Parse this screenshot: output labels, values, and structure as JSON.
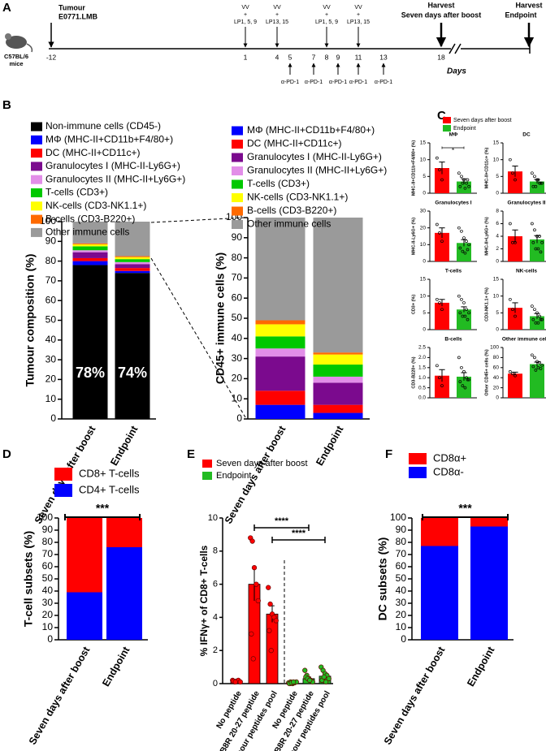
{
  "panel_labels": [
    "A",
    "B",
    "C",
    "D",
    "E",
    "F"
  ],
  "timeline": {
    "mouse": [
      "C57BL/6",
      "mice"
    ],
    "tumour": [
      "Tumour",
      "E0771.LMB"
    ],
    "days": [
      -12,
      1,
      4,
      5,
      7,
      8,
      9,
      11,
      13,
      18
    ],
    "axis_label": "Days",
    "injections": [
      {
        "agent": "VV",
        "plus": "+",
        "peptides": "LP1, 5, 9"
      },
      {
        "agent": "VV",
        "plus": "+",
        "peptides": "LP13, 15"
      },
      {
        "agent": "VV",
        "plus": "+",
        "peptides": "LP1, 5, 9"
      },
      {
        "agent": "VV",
        "plus": "+",
        "peptides": "LP13, 15"
      }
    ],
    "pd1": [
      "α-PD-1",
      "α-PD-1",
      "α-PD-1",
      "α-PD-1",
      "α-PD-1"
    ],
    "harvests": [
      {
        "title": "Harvest",
        "when": "Seven days after boost"
      },
      {
        "title": "Harvest",
        "when": "Endpoint"
      }
    ]
  },
  "panel_c_legend": {
    "names": [
      "Seven days after boost",
      "Endpoint"
    ]
  },
  "chart_data": [
    {
      "type": "stacked_bar",
      "ylabel": "Tumour composition (%)",
      "categories": [
        "Seven days after boost",
        "Endpoint"
      ],
      "ylim": [
        0,
        100
      ],
      "yticks": [
        0,
        10,
        20,
        30,
        40,
        50,
        60,
        70,
        80,
        90,
        100
      ],
      "series": [
        {
          "name": "Non-immune cells (CD45-)",
          "color": "#000000",
          "values": [
            78,
            74
          ],
          "value_labels": [
            "78%",
            "74%"
          ]
        },
        {
          "name": "MΦ (MHC-II+CD11b+F4/80+)",
          "color": "#0000ff",
          "values": [
            2,
            1
          ]
        },
        {
          "name": "DC (MHC-II+CD11c+)",
          "color": "#ff0000",
          "values": [
            1.5,
            1.5
          ]
        },
        {
          "name": "Granulocytes I (MHC-II-Ly6G+)",
          "color": "#7b0a8e",
          "values": [
            3,
            2
          ]
        },
        {
          "name": "Granulocytes II (MHC-II+Ly6G+)",
          "color": "#e28ee8",
          "values": [
            1,
            1
          ]
        },
        {
          "name": "T-cells (CD3+)",
          "color": "#00c800",
          "values": [
            2,
            1.5
          ]
        },
        {
          "name": "NK-cells (CD3-NK1.1+)",
          "color": "#ffff00",
          "values": [
            1,
            1
          ]
        },
        {
          "name": "B-cells (CD3-B220+)",
          "color": "#ff6a00",
          "values": [
            0.5,
            0.5
          ]
        },
        {
          "name": "Other immune cells",
          "color": "#9a9a9a",
          "values": [
            11,
            17.5
          ]
        }
      ]
    },
    {
      "type": "stacked_bar",
      "ylabel": "CD45+ immune cells (%)",
      "categories": [
        "Seven days after boost",
        "Endpoint"
      ],
      "ylim": [
        0,
        100
      ],
      "yticks": [
        0,
        10,
        20,
        30,
        40,
        50,
        60,
        70,
        80,
        90,
        100
      ],
      "series": [
        {
          "name": "MΦ (MHC-II+CD11b+F4/80+)",
          "color": "#0000ff",
          "values": [
            7,
            3
          ]
        },
        {
          "name": "DC (MHC-II+CD11c+)",
          "color": "#ff0000",
          "values": [
            7,
            4
          ]
        },
        {
          "name": "Granulocytes I (MHC-II-Ly6G+)",
          "color": "#7b0a8e",
          "values": [
            17,
            11
          ]
        },
        {
          "name": "Granulocytes II (MHC-II+Ly6G+)",
          "color": "#e28ee8",
          "values": [
            4,
            3
          ]
        },
        {
          "name": "T-cells (CD3+)",
          "color": "#00c800",
          "values": [
            6,
            6
          ]
        },
        {
          "name": "NK-cells (CD3-NK1.1+)",
          "color": "#ffff00",
          "values": [
            6,
            5
          ]
        },
        {
          "name": "B-cells (CD3-B220+)",
          "color": "#ff6a00",
          "values": [
            2,
            1
          ]
        },
        {
          "name": "Other immune cells",
          "color": "#9a9a9a",
          "values": [
            51,
            67
          ]
        }
      ]
    },
    {
      "type": "dot_bar",
      "title": "MΦ",
      "ylabel": "MHC-II+CD11b+F4/80+ (%)",
      "ylim": [
        0,
        15
      ],
      "yticks": [
        0,
        5,
        10,
        15
      ],
      "significance": "*",
      "series": [
        {
          "color": "#ff0000",
          "values": [
            7.5
          ],
          "errors": [
            1.8
          ],
          "points": [
            [
              10.5,
              7,
              4
            ]
          ]
        },
        {
          "color": "#22bb22",
          "values": [
            3.5
          ],
          "errors": [
            0.8
          ],
          "points": [
            [
              6,
              5,
              4,
              3,
              2,
              2,
              3,
              1.5,
              4
            ]
          ]
        }
      ]
    },
    {
      "type": "dot_bar",
      "title": "DC",
      "ylabel": "MHC-II+CD11c+ (%)",
      "ylim": [
        0,
        15
      ],
      "yticks": [
        0,
        5,
        10,
        15
      ],
      "series": [
        {
          "color": "#ff0000",
          "values": [
            6.5
          ],
          "errors": [
            1.6
          ],
          "points": [
            [
              10,
              6,
              4
            ]
          ]
        },
        {
          "color": "#22bb22",
          "values": [
            3.5
          ],
          "errors": [
            0.6
          ],
          "points": [
            [
              6,
              5,
              4,
              3,
              3,
              2,
              2,
              4,
              3
            ]
          ]
        }
      ]
    },
    {
      "type": "dot_bar",
      "title": "Granulocytes I",
      "ylabel": "MHC-II-Ly6G+ (%)",
      "ylim": [
        0,
        30
      ],
      "yticks": [
        0,
        10,
        20,
        30
      ],
      "series": [
        {
          "color": "#ff0000",
          "values": [
            17
          ],
          "errors": [
            3
          ],
          "points": [
            [
              22,
              17,
              12
            ]
          ]
        },
        {
          "color": "#22bb22",
          "values": [
            11
          ],
          "errors": [
            2
          ],
          "points": [
            [
              20,
              18,
              14,
              12,
              10,
              8,
              6,
              5,
              7
            ]
          ]
        }
      ]
    },
    {
      "type": "dot_bar",
      "title": "Granulocytes II",
      "ylabel": "MHC-II+Ly6G+ (%)",
      "ylim": [
        0,
        8
      ],
      "yticks": [
        0,
        2,
        4,
        6,
        8
      ],
      "series": [
        {
          "color": "#ff0000",
          "values": [
            4
          ],
          "errors": [
            1
          ],
          "points": [
            [
              6,
              3,
              3
            ]
          ]
        },
        {
          "color": "#22bb22",
          "values": [
            3.5
          ],
          "errors": [
            0.6
          ],
          "points": [
            [
              6,
              5,
              4,
              4,
              3,
              3,
              2,
              2,
              1.5
            ]
          ]
        }
      ]
    },
    {
      "type": "dot_bar",
      "title": "T-cells",
      "ylabel": "CD3+ (%)",
      "ylim": [
        0,
        15
      ],
      "yticks": [
        0,
        5,
        10,
        15
      ],
      "series": [
        {
          "color": "#ff0000",
          "values": [
            8
          ],
          "errors": [
            1
          ],
          "points": [
            [
              9,
              8,
              6
            ]
          ]
        },
        {
          "color": "#22bb22",
          "values": [
            6
          ],
          "errors": [
            0.8
          ],
          "points": [
            [
              10,
              9,
              8,
              6,
              5,
              5,
              4,
              4,
              3
            ]
          ]
        }
      ]
    },
    {
      "type": "dot_bar",
      "title": "NK-cells",
      "ylabel": "CD3-NK1.1+ (%)",
      "ylim": [
        0,
        15
      ],
      "yticks": [
        0,
        5,
        10,
        15
      ],
      "series": [
        {
          "color": "#ff0000",
          "values": [
            6.5
          ],
          "errors": [
            1.5
          ],
          "points": [
            [
              9,
              6,
              4
            ]
          ]
        },
        {
          "color": "#22bb22",
          "values": [
            4
          ],
          "errors": [
            0.8
          ],
          "points": [
            [
              7,
              6,
              5,
              4,
              3,
              3,
              2,
              2,
              3
            ]
          ]
        }
      ]
    },
    {
      "type": "dot_bar",
      "title": "B-cells",
      "ylabel": "CD3-B220+ (%)",
      "ylim": [
        0,
        2.5
      ],
      "yticks": [
        {
          "value": 0,
          "label": "0.0"
        },
        0.5,
        {
          "value": 1,
          "label": "1.0"
        },
        1.5,
        {
          "value": 2,
          "label": "2.0"
        },
        2.5
      ],
      "series": [
        {
          "color": "#ff0000",
          "values": [
            1.1
          ],
          "errors": [
            0.3
          ],
          "points": [
            [
              1.6,
              1.0,
              0.6
            ]
          ]
        },
        {
          "color": "#22bb22",
          "values": [
            1.05
          ],
          "errors": [
            0.2
          ],
          "points": [
            [
              2.0,
              1.5,
              1.3,
              1.0,
              0.9,
              0.8,
              0.6,
              0.5,
              0.9
            ]
          ]
        }
      ]
    },
    {
      "type": "dot_bar",
      "title": "Other immune cells",
      "ylabel": "Other CD45+ cells (%)",
      "ylim": [
        0,
        100
      ],
      "yticks": [
        0,
        20,
        40,
        60,
        80,
        100
      ],
      "series": [
        {
          "color": "#ff0000",
          "values": [
            48
          ],
          "errors": [
            3
          ],
          "points": [
            [
              52,
              48,
              44
            ]
          ]
        },
        {
          "color": "#22bb22",
          "values": [
            67
          ],
          "errors": [
            4
          ],
          "points": [
            [
              85,
              80,
              72,
              70,
              65,
              62,
              55,
              60,
              58
            ]
          ]
        }
      ]
    },
    {
      "type": "stacked_bar",
      "ylabel": "T-cell subsets (%)",
      "categories": [
        "Seven days after boost",
        "Endpoint"
      ],
      "ylim": [
        0,
        100
      ],
      "yticks": [
        0,
        10,
        20,
        30,
        40,
        50,
        60,
        70,
        80,
        90,
        100
      ],
      "significance": "***",
      "legend_order": "reverse",
      "series": [
        {
          "name": "CD4+ T-cells",
          "color": "#0000ff",
          "values": [
            39,
            76
          ]
        },
        {
          "name": "CD8+ T-cells",
          "color": "#ff0000",
          "values": [
            61,
            24
          ]
        }
      ]
    },
    {
      "type": "dot_bar",
      "ylabel": "% IFNγ+ of CD8+ T-cells",
      "categories": [
        "No peptide",
        "VV B8R 20-27 peptide",
        "Tumour peptides pool"
      ],
      "ylim": [
        0,
        10
      ],
      "yticks": [
        0,
        2,
        4,
        6,
        8,
        10
      ],
      "significance": [
        "****",
        "****"
      ],
      "series": [
        {
          "name": "Seven days after boost",
          "color": "#ff0000",
          "values": [
            0.15,
            6,
            4.2
          ],
          "errors": [
            0.03,
            1.0,
            0.5
          ],
          "points": [
            [
              0.2,
              0.1,
              0.15,
              0.2,
              0.1,
              0.15,
              0.1
            ],
            [
              8.8,
              8.6,
              7.0,
              6.0,
              5.0,
              3.0,
              1.5
            ],
            [
              5.8,
              4.8,
              4.2,
              4.0,
              3.8,
              3.2,
              2.0
            ]
          ]
        },
        {
          "name": "Endpoint",
          "color": "#22bb22",
          "values": [
            0.05,
            0.3,
            0.45
          ],
          "errors": [
            0.02,
            0.1,
            0.12
          ],
          "points": [
            [
              0.05,
              0.1,
              0,
              0.05,
              0.1,
              0,
              0.05,
              0.1
            ],
            [
              0.8,
              0.5,
              0.3,
              0.2,
              0.1,
              0.4,
              0.3,
              0.2
            ],
            [
              1.0,
              0.8,
              0.6,
              0.5,
              0.3,
              0.2,
              0.4,
              0.1
            ]
          ]
        }
      ]
    },
    {
      "type": "stacked_bar",
      "ylabel": "DC subsets (%)",
      "categories": [
        "Seven days after boost",
        "Endpoint"
      ],
      "ylim": [
        0,
        100
      ],
      "yticks": [
        0,
        10,
        20,
        30,
        40,
        50,
        60,
        70,
        80,
        90,
        100
      ],
      "significance": "***",
      "legend_order": "reverse",
      "series": [
        {
          "name": "CD8α-",
          "color": "#0000ff",
          "values": [
            77,
            93
          ]
        },
        {
          "name": "CD8α+",
          "color": "#ff0000",
          "values": [
            23,
            7
          ]
        }
      ]
    }
  ]
}
